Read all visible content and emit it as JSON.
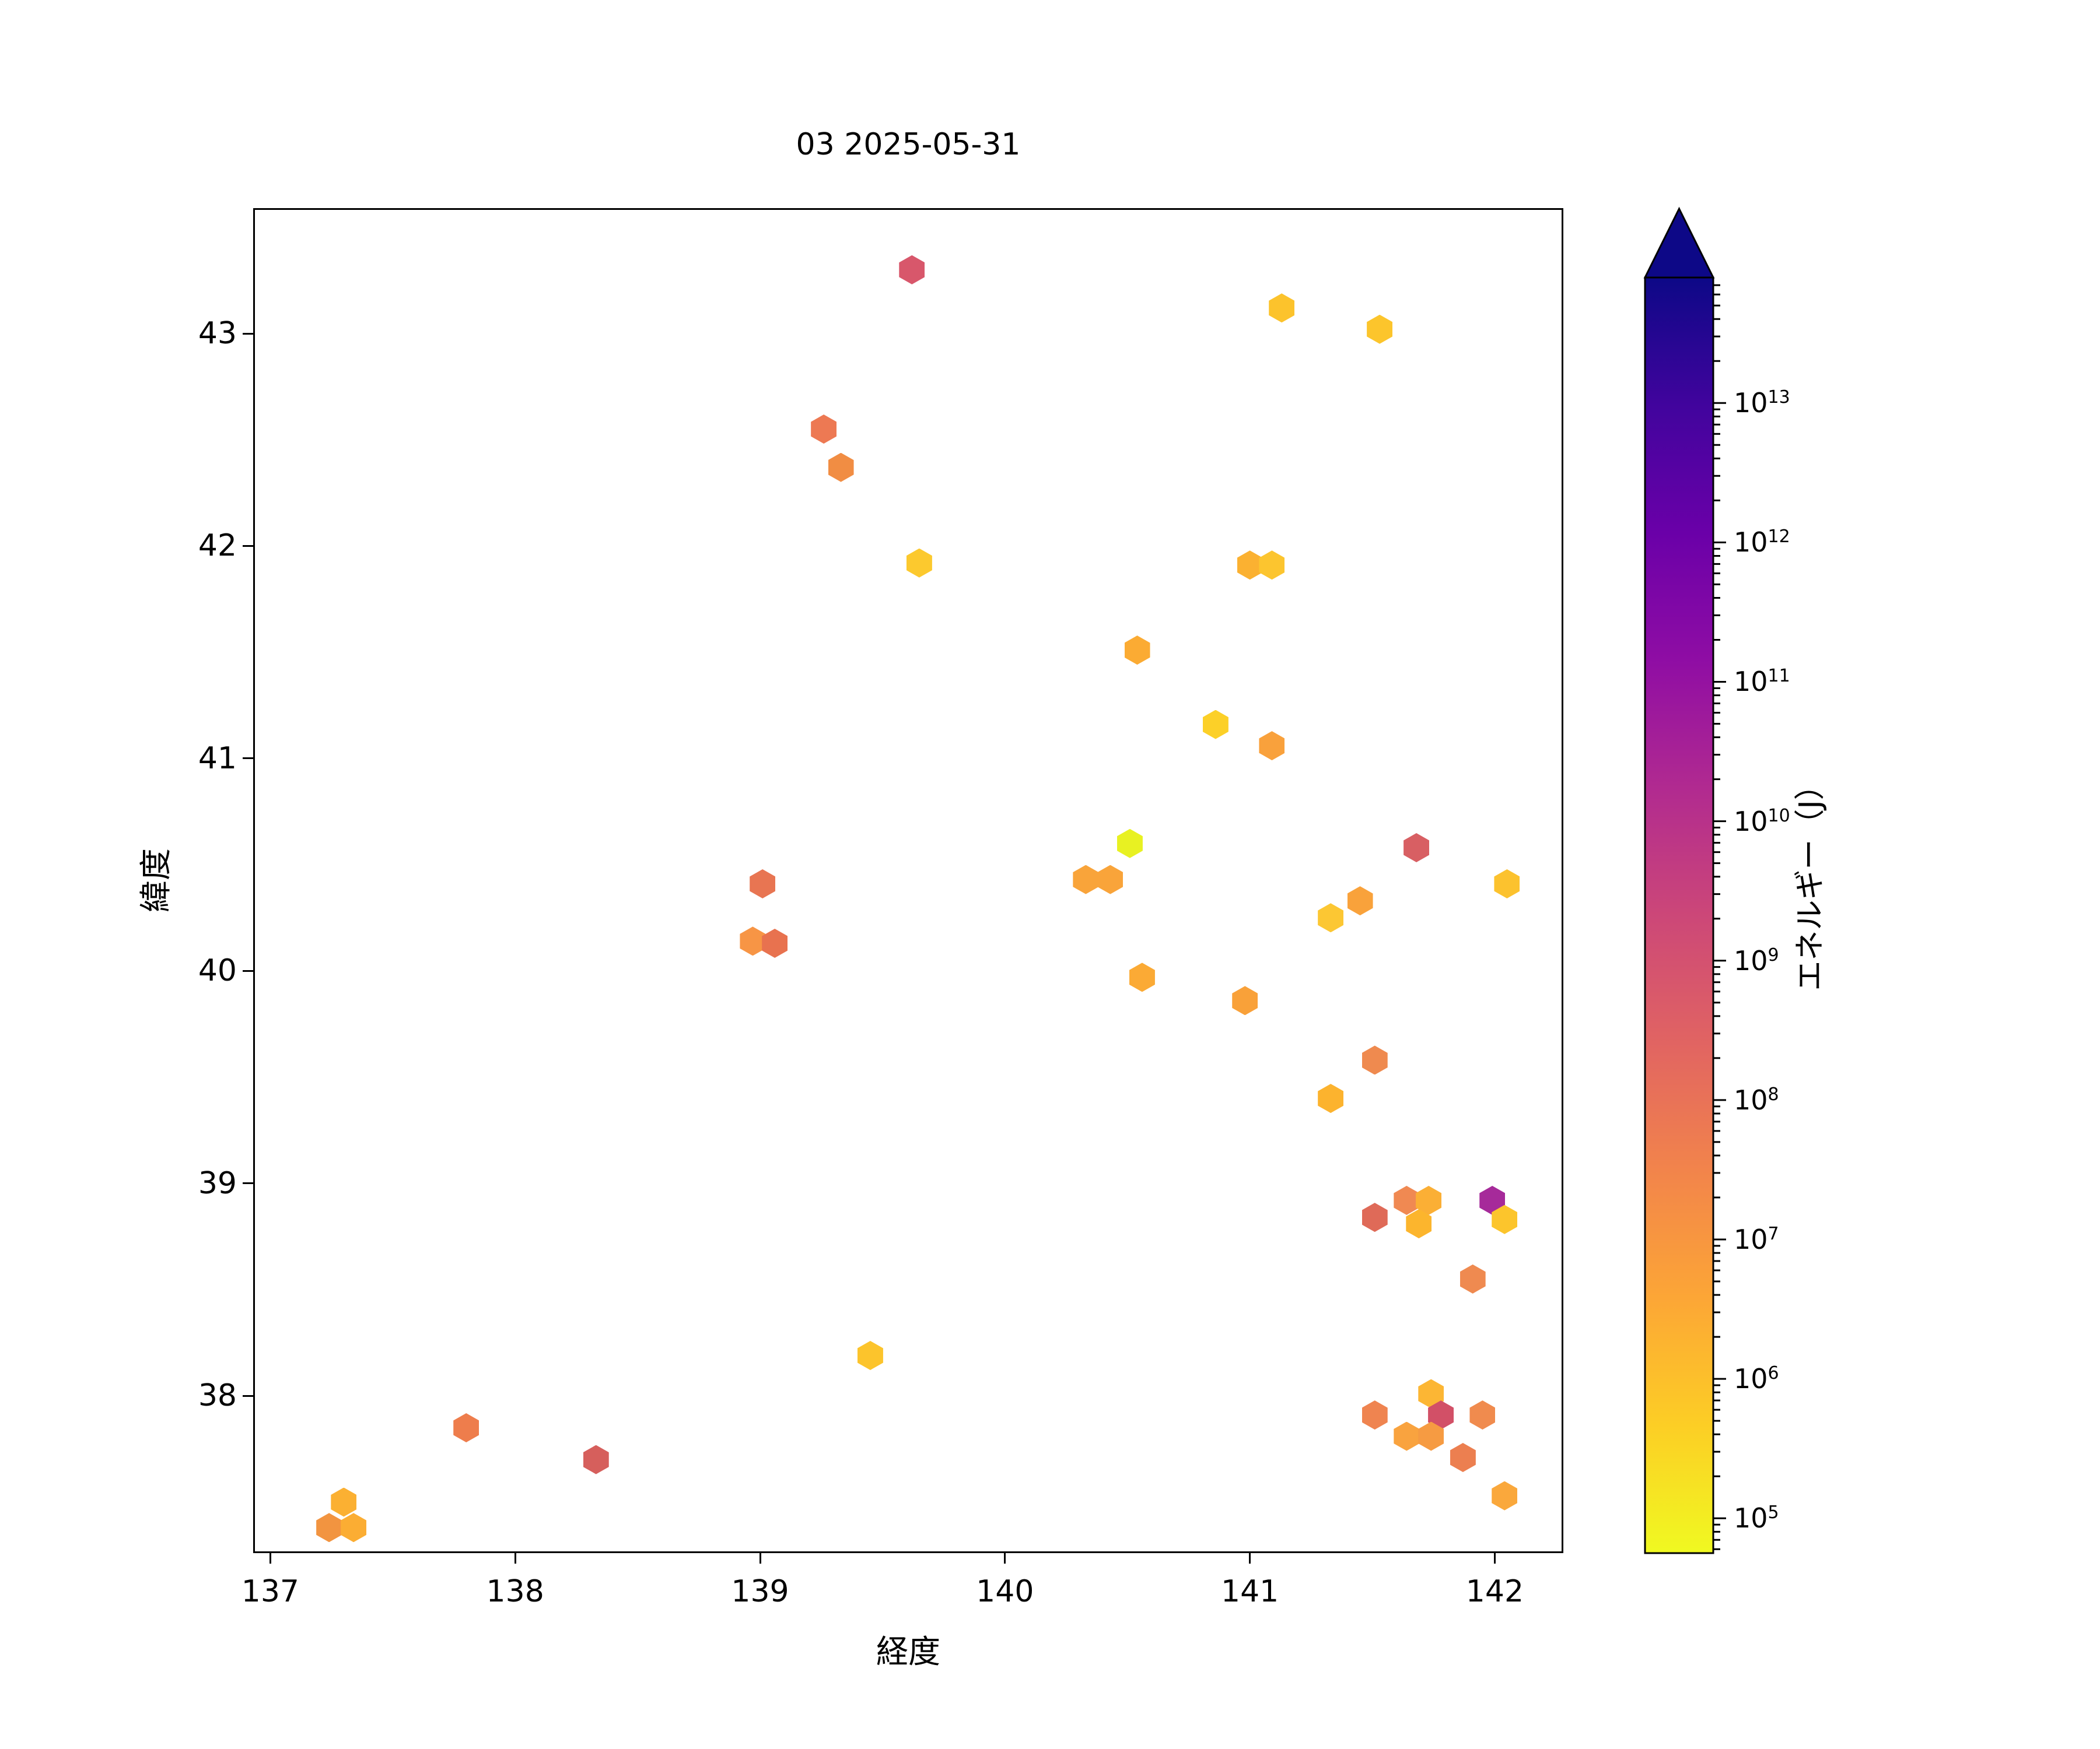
{
  "figure": {
    "title": "03 2025-05-31"
  },
  "chart_data": {
    "type": "scatter",
    "title": "03 2025-05-31",
    "xlabel": "経度",
    "ylabel": "緯度",
    "xlim": [
      136.93,
      142.28
    ],
    "ylim": [
      37.26,
      43.59
    ],
    "xticks": [
      137,
      138,
      139,
      140,
      141,
      142
    ],
    "yticks": [
      38,
      39,
      40,
      41,
      42,
      43
    ],
    "grid": false,
    "legend": "none",
    "marker": "hexagon",
    "colorbar": {
      "label": "エネルギー（J）",
      "scale": "log",
      "tick_base": "10",
      "tick_exponents": [
        5,
        6,
        7,
        8,
        9,
        10,
        11,
        12,
        13
      ],
      "range_exponents": [
        4.75,
        13.9
      ],
      "extend": "max",
      "colormap": "plasma_reversed",
      "extend_color": "#0d0887",
      "gradient_stops_top_to_bottom": [
        "#0d0887",
        "#41049d",
        "#6a00a8",
        "#8f0da4",
        "#b12a90",
        "#cc4778",
        "#e16462",
        "#f2844b",
        "#fca636",
        "#fcce25",
        "#f0f921"
      ]
    },
    "points": [
      {
        "lon": 139.62,
        "lat": 43.3,
        "energy_j": 740000000.0,
        "color": "#d8576b"
      },
      {
        "lon": 141.13,
        "lat": 43.12,
        "energy_j": 780000.0,
        "color": "#fcc32c"
      },
      {
        "lon": 141.53,
        "lat": 43.02,
        "energy_j": 780000.0,
        "color": "#fcc52c"
      },
      {
        "lon": 139.26,
        "lat": 42.55,
        "energy_j": 72000000.0,
        "color": "#ed7953"
      },
      {
        "lon": 139.33,
        "lat": 42.37,
        "energy_j": 20000000.0,
        "color": "#f18d43"
      },
      {
        "lon": 139.65,
        "lat": 41.92,
        "energy_j": 630000.0,
        "color": "#fcc92e"
      },
      {
        "lon": 141.0,
        "lat": 41.91,
        "energy_j": 1600000.0,
        "color": "#fbb131"
      },
      {
        "lon": 141.09,
        "lat": 41.91,
        "energy_j": 780000.0,
        "color": "#fcc52f"
      },
      {
        "lon": 140.54,
        "lat": 41.51,
        "energy_j": 2500000.0,
        "color": "#fbab33"
      },
      {
        "lon": 140.86,
        "lat": 41.16,
        "energy_j": 370000.0,
        "color": "#fcd028"
      },
      {
        "lon": 141.09,
        "lat": 41.06,
        "energy_j": 4700000.0,
        "color": "#f9a13c"
      },
      {
        "lon": 141.68,
        "lat": 40.58,
        "energy_j": 440000000.0,
        "color": "#d85f63"
      },
      {
        "lon": 140.51,
        "lat": 40.6,
        "energy_j": 120000.0,
        "color": "#e8f122"
      },
      {
        "lon": 142.05,
        "lat": 40.41,
        "energy_j": 870000.0,
        "color": "#fcc22e"
      },
      {
        "lon": 139.01,
        "lat": 40.41,
        "energy_j": 81000000.0,
        "color": "#e87552"
      },
      {
        "lon": 140.33,
        "lat": 40.43,
        "energy_j": 4200000.0,
        "color": "#f9a43a"
      },
      {
        "lon": 140.43,
        "lat": 40.43,
        "energy_j": 4200000.0,
        "color": "#f9a43a"
      },
      {
        "lon": 141.45,
        "lat": 40.33,
        "energy_j": 4700000.0,
        "color": "#f9a23b"
      },
      {
        "lon": 141.33,
        "lat": 40.25,
        "energy_j": 710000.0,
        "color": "#fcc733"
      },
      {
        "lon": 138.97,
        "lat": 40.14,
        "energy_j": 8900000.0,
        "color": "#f79545"
      },
      {
        "lon": 139.06,
        "lat": 40.13,
        "energy_j": 90000000.0,
        "color": "#e8724f"
      },
      {
        "lon": 140.56,
        "lat": 39.97,
        "energy_j": 2500000.0,
        "color": "#fbaa35"
      },
      {
        "lon": 140.98,
        "lat": 39.86,
        "energy_j": 4700000.0,
        "color": "#f9a139"
      },
      {
        "lon": 141.51,
        "lat": 39.58,
        "energy_j": 23000000.0,
        "color": "#ef8a4f"
      },
      {
        "lon": 141.33,
        "lat": 39.4,
        "energy_j": 1800000.0,
        "color": "#fcb32e"
      },
      {
        "lon": 141.51,
        "lat": 38.84,
        "energy_j": 170000000.0,
        "color": "#df6a58"
      },
      {
        "lon": 141.64,
        "lat": 38.92,
        "energy_j": 25000000.0,
        "color": "#f08952"
      },
      {
        "lon": 141.73,
        "lat": 38.92,
        "energy_j": 2000000.0,
        "color": "#fbaf35"
      },
      {
        "lon": 141.69,
        "lat": 38.81,
        "energy_j": 1600000.0,
        "color": "#fcb52d"
      },
      {
        "lon": 141.99,
        "lat": 38.92,
        "energy_j": 36000000000.0,
        "color": "#a62a9a"
      },
      {
        "lon": 142.04,
        "lat": 38.83,
        "energy_j": 780000.0,
        "color": "#fcc52c"
      },
      {
        "lon": 141.91,
        "lat": 38.55,
        "energy_j": 23000000.0,
        "color": "#ef8a50"
      },
      {
        "lon": 139.45,
        "lat": 38.19,
        "energy_j": 870000.0,
        "color": "#fcc42c"
      },
      {
        "lon": 137.8,
        "lat": 37.85,
        "energy_j": 39000000.0,
        "color": "#ee7d4c"
      },
      {
        "lon": 138.33,
        "lat": 37.7,
        "energy_j": 480000000.0,
        "color": "#d65f5c"
      },
      {
        "lon": 137.3,
        "lat": 37.5,
        "energy_j": 1800000.0,
        "color": "#fbb032"
      },
      {
        "lon": 137.24,
        "lat": 37.38,
        "energy_j": 10000000.0,
        "color": "#f29440"
      },
      {
        "lon": 137.34,
        "lat": 37.38,
        "energy_j": 2200000.0,
        "color": "#fbad33"
      },
      {
        "lon": 141.51,
        "lat": 37.91,
        "energy_j": 28000000.0,
        "color": "#ef8450"
      },
      {
        "lon": 141.74,
        "lat": 38.01,
        "energy_j": 1600000.0,
        "color": "#fcb634"
      },
      {
        "lon": 141.78,
        "lat": 37.91,
        "energy_j": 1400000000.0,
        "color": "#d25067"
      },
      {
        "lon": 141.95,
        "lat": 37.91,
        "energy_j": 23000000.0,
        "color": "#f08b4e"
      },
      {
        "lon": 141.64,
        "lat": 37.81,
        "energy_j": 4200000.0,
        "color": "#f9a33f"
      },
      {
        "lon": 141.74,
        "lat": 37.81,
        "energy_j": 6500000.0,
        "color": "#f69b42"
      },
      {
        "lon": 141.87,
        "lat": 37.71,
        "energy_j": 32000000.0,
        "color": "#ec7f50"
      },
      {
        "lon": 142.04,
        "lat": 37.53,
        "energy_j": 3100000.0,
        "color": "#faa83c"
      }
    ]
  }
}
